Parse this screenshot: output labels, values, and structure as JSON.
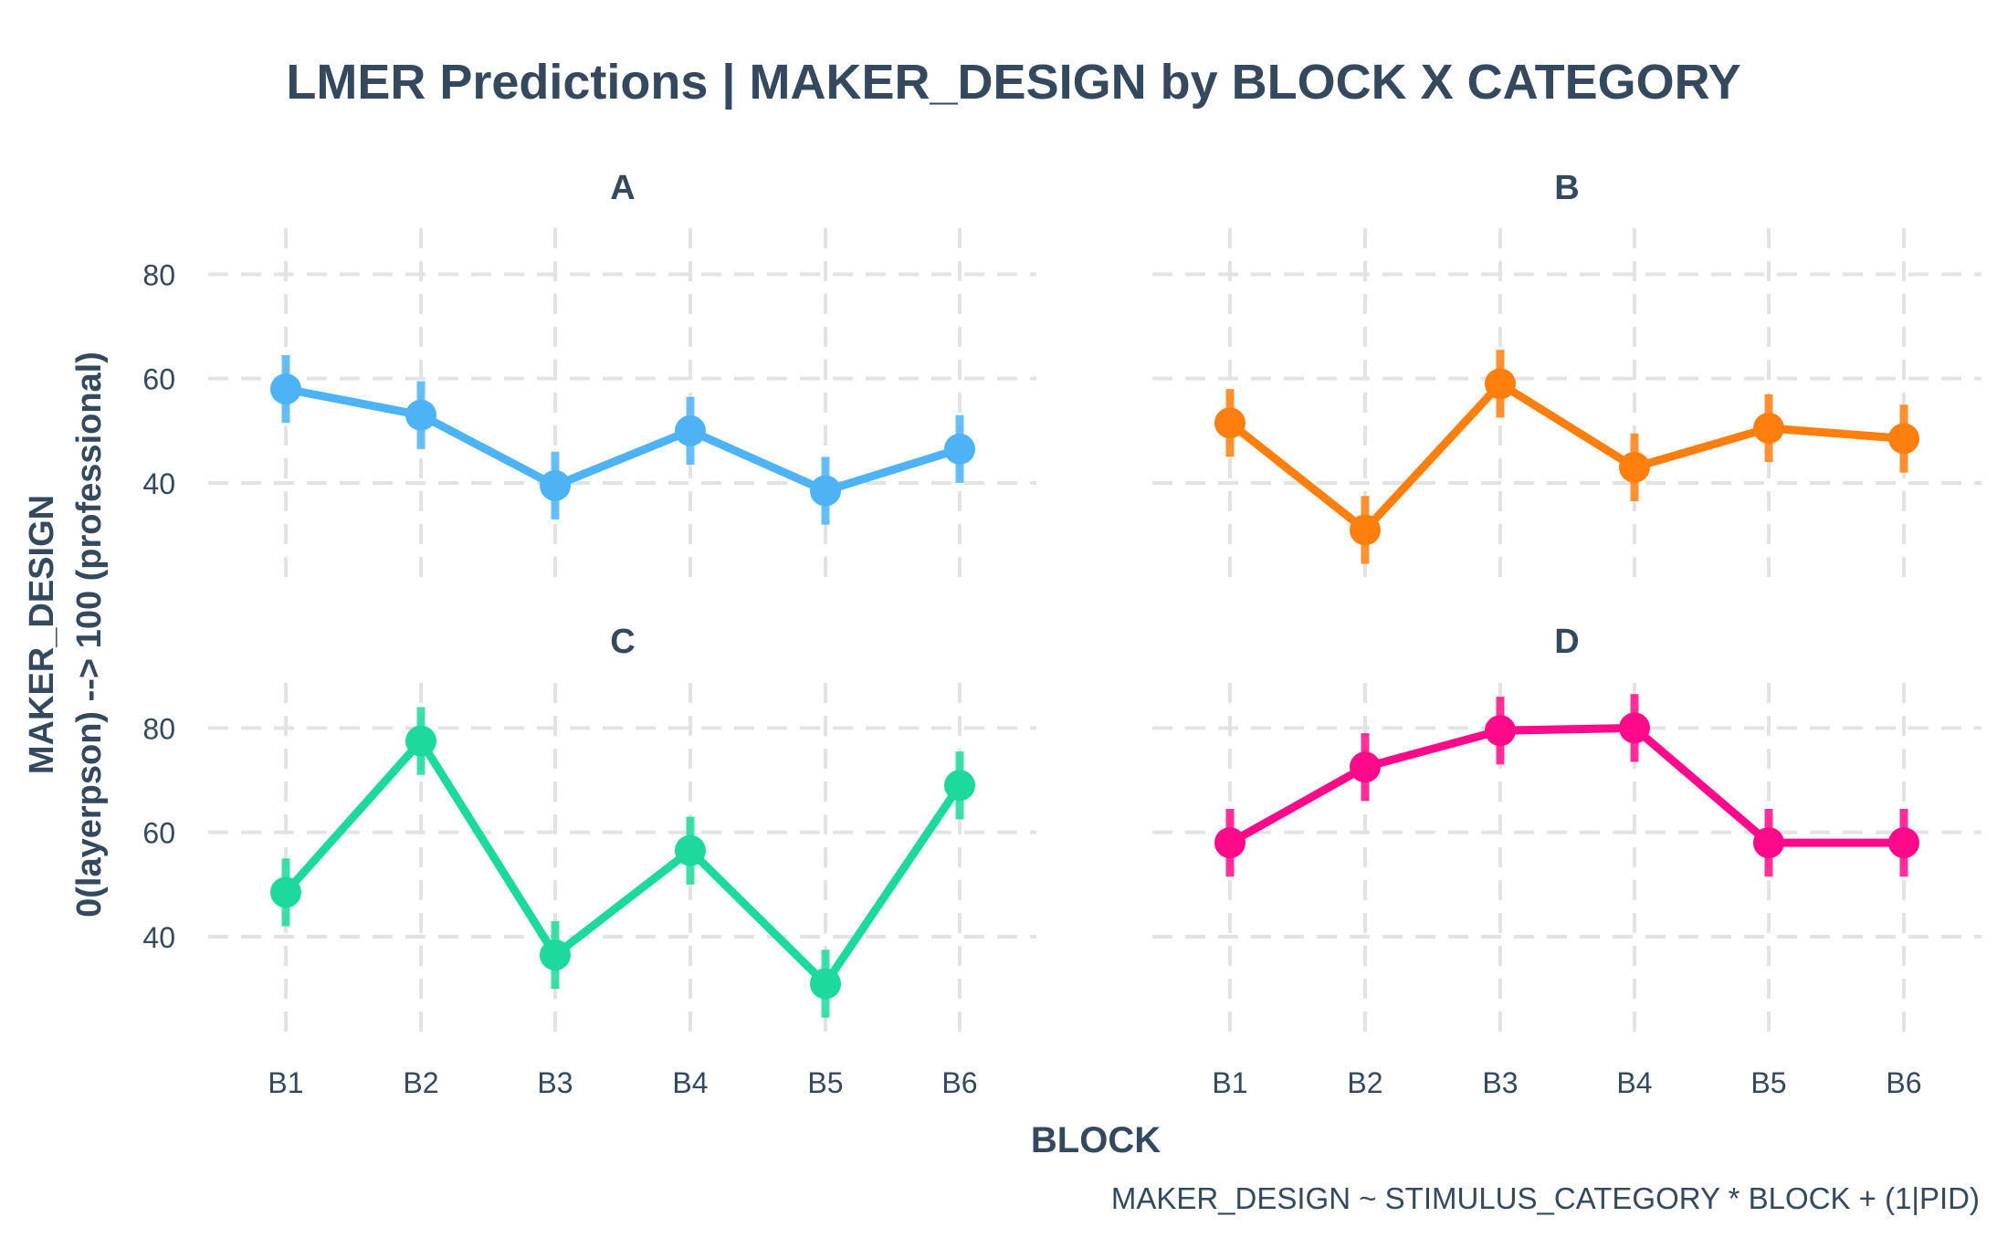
{
  "chart_data": {
    "type": "line",
    "title": "LMER Predictions | MAKER_DESIGN by BLOCK X CATEGORY",
    "xlabel": "BLOCK",
    "ylabel_line1": "MAKER_DESIGN",
    "ylabel_line2": "0(layerpson) --> 100 (professional)",
    "caption": "MAKER_DESIGN ~ STIMULUS_CATEGORY * BLOCK + (1|PID)",
    "categories": [
      "B1",
      "B2",
      "B3",
      "B4",
      "B5",
      "B6"
    ],
    "ylim": [
      20,
      90
    ],
    "yticks": [
      40,
      60,
      80
    ],
    "grid": true,
    "panels": [
      {
        "name": "A",
        "color": "#4DB3F5",
        "values": [
          58,
          53,
          39.5,
          50,
          38.5,
          46.5
        ],
        "lower": [
          51.5,
          46.5,
          33,
          43.5,
          32,
          40
        ],
        "upper": [
          64.5,
          59.5,
          46,
          56.5,
          45,
          53
        ]
      },
      {
        "name": "B",
        "color": "#FF7F0E",
        "values": [
          51.5,
          31,
          59,
          43,
          50.5,
          48.5
        ],
        "lower": [
          45,
          24.5,
          52.5,
          36.5,
          44,
          42
        ],
        "upper": [
          58,
          37.5,
          65.5,
          49.5,
          57,
          55
        ]
      },
      {
        "name": "C",
        "color": "#1DD99B",
        "values": [
          48.5,
          77.5,
          36.5,
          56.5,
          31,
          69
        ],
        "lower": [
          42,
          71,
          30,
          50,
          24.5,
          62.5
        ],
        "upper": [
          55,
          84,
          43,
          63,
          37.5,
          75.5
        ]
      },
      {
        "name": "D",
        "color": "#FF0A8A",
        "values": [
          58,
          72.5,
          79.5,
          80,
          58,
          58
        ],
        "lower": [
          51.5,
          66,
          73,
          73.5,
          51.5,
          51.5
        ],
        "upper": [
          64.5,
          79,
          86,
          86.5,
          64.5,
          64.5
        ]
      }
    ]
  }
}
